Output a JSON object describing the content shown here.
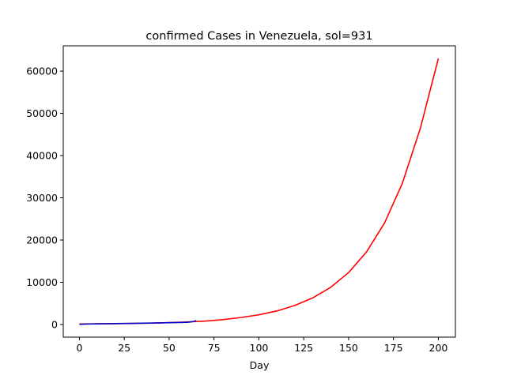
{
  "chart_data": {
    "type": "line",
    "title": "confirmed Cases in Venezuela, sol=931",
    "xlabel": "Day",
    "ylabel": "",
    "xlim": [
      -9,
      209.5
    ],
    "ylim": [
      -3000,
      66000
    ],
    "xticks": [
      0,
      25,
      50,
      75,
      100,
      125,
      150,
      175,
      200
    ],
    "yticks": [
      0,
      10000,
      20000,
      30000,
      40000,
      50000,
      60000
    ],
    "grid": false,
    "series": [
      {
        "color": "#ff0000",
        "x": [
          0,
          10,
          20,
          30,
          40,
          50,
          60,
          65,
          70,
          80,
          90,
          100,
          110,
          120,
          130,
          140,
          150,
          160,
          170,
          180,
          190,
          200
        ],
        "y": [
          130,
          160,
          200,
          260,
          340,
          450,
          600,
          700,
          800,
          1150,
          1650,
          2300,
          3200,
          4500,
          6300,
          8800,
          12300,
          17200,
          24000,
          33500,
          46500,
          63000
        ]
      },
      {
        "color": "#0000cc",
        "x": [
          0,
          5,
          10,
          15,
          20,
          25,
          30,
          35,
          40,
          45,
          50,
          55,
          60,
          62,
          64,
          65
        ],
        "y": [
          40,
          110,
          150,
          180,
          210,
          240,
          260,
          300,
          340,
          380,
          420,
          470,
          520,
          600,
          760,
          930
        ]
      }
    ]
  }
}
